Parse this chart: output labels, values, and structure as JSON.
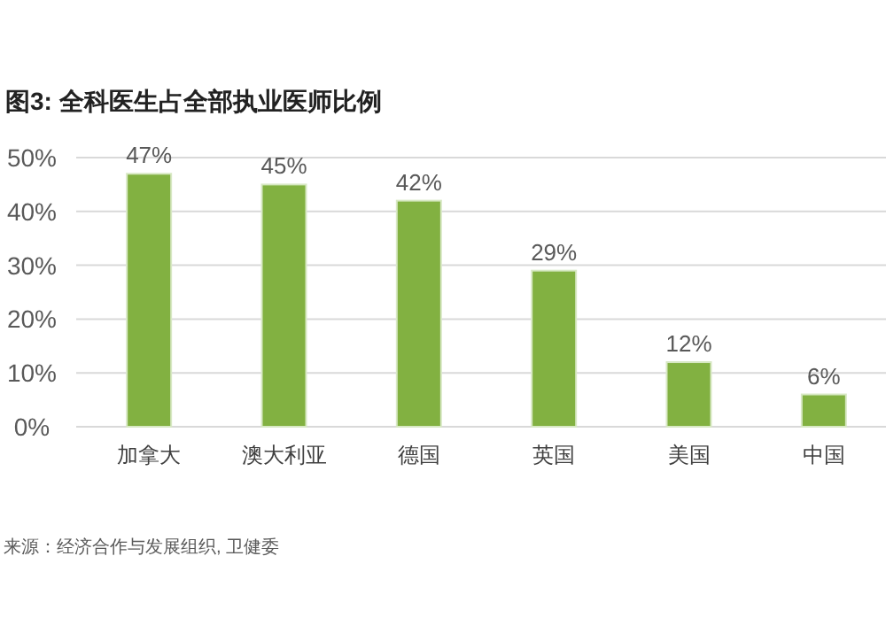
{
  "chart_data": {
    "type": "bar",
    "title": "图3: 全科医生占全部执业医师比例",
    "categories": [
      "加拿大",
      "澳大利亚",
      "德国",
      "英国",
      "美国",
      "中国"
    ],
    "values": [
      47,
      45,
      42,
      29,
      12,
      6
    ],
    "value_labels": [
      "47%",
      "45%",
      "42%",
      "29%",
      "12%",
      "6%"
    ],
    "color": "#82b141",
    "ylim": [
      0,
      50
    ],
    "yticks": [
      {
        "value": 0,
        "label": "0%"
      },
      {
        "value": 10,
        "label": "10%"
      },
      {
        "value": 20,
        "label": "20%"
      },
      {
        "value": 30,
        "label": "30%"
      },
      {
        "value": 40,
        "label": "40%"
      },
      {
        "value": 50,
        "label": "50%"
      }
    ],
    "grid": "y",
    "annotations": [
      "来源：经济合作与发展组织, 卫健委"
    ]
  }
}
